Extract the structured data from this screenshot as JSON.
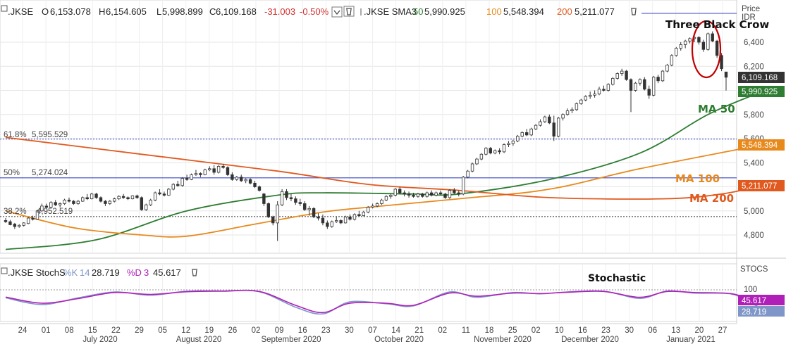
{
  "header": {
    "symbol": ".JKSE",
    "open_label": "O",
    "open": "6,153.078",
    "high_label": "H",
    "high": "6,154.605",
    "low_label": "L",
    "low": "5,998.899",
    "close_label": "C",
    "close": "6,109.168",
    "change": "-31.003",
    "change_pct": "-0.50%",
    "sma_label": ".JKSE SMA3",
    "sma50_period": "50",
    "sma50_value": "5,990.925",
    "sma100_period": "100",
    "sma100_value": "5,548.394",
    "sma200_period": "200",
    "sma200_value": "5,211.077"
  },
  "stoch_header": {
    "label": ".JKSE StochS",
    "k_label": "%K",
    "k_period": "14",
    "k_value": "28.719",
    "d_label": "%D",
    "d_period": "3",
    "d_value": "45.617"
  },
  "price_axis": {
    "label1": "Price",
    "label2": "IDR",
    "ticks": [
      "6,400",
      "6,200",
      "6,000",
      "5,800",
      "5,600",
      "5,400",
      "5,200",
      "5,000",
      "4,800"
    ],
    "tags": {
      "close": "6,109.168",
      "ma50": "5,990.925",
      "ma100": "5,548.394",
      "ma200": "5,211.077"
    }
  },
  "stoch_axis": {
    "label": "STOCS",
    "tick": "100",
    "tags": {
      "d": "45.617",
      "k": "28.719"
    }
  },
  "fib": {
    "f618_pct": "61.8%",
    "f618_value": "5,595.529",
    "f50_pct": "50%",
    "f50_value": "5,274.024",
    "f382_pct": "38.2%",
    "f382_value": "4,952.519"
  },
  "annotations": {
    "pattern": "Three Black Crow",
    "ma50": "MA 50",
    "ma100": "MA 100",
    "ma200": "MA 200",
    "stochastic": "Stochastic"
  },
  "x_axis": {
    "days": [
      "24",
      "01",
      "08",
      "15",
      "22",
      "29",
      "05",
      "12",
      "19",
      "26",
      "02",
      "09",
      "16",
      "23",
      "30",
      "07",
      "14",
      "21",
      "02",
      "11",
      "18",
      "25",
      "02",
      "10",
      "16",
      "23",
      "30",
      "06",
      "13",
      "20",
      "27"
    ],
    "months": [
      "July 2020",
      "August 2020",
      "September 2020",
      "October 2020",
      "November 2020",
      "December 2020",
      "January 2021"
    ]
  },
  "colors": {
    "ma50": "#2e7d32",
    "ma100": "#e8891c",
    "ma200": "#e05a1f",
    "k_line": "#7f96c8",
    "d_line": "#b020b8",
    "fib_line": "#3a46c8",
    "circle": "#c00000",
    "negative": "#d32f2f",
    "close_tag": "#333333"
  },
  "chart_data": {
    "type": "candlestick",
    "title": "",
    "y_unit": "IDR",
    "ylim": [
      4650,
      6600
    ],
    "x_range": [
      "2020-06-24",
      "2021-01-27"
    ],
    "candles_daily": [
      [
        4920,
        4940,
        4900,
        4910
      ],
      [
        4910,
        4925,
        4880,
        4885
      ],
      [
        4890,
        4900,
        4850,
        4870
      ],
      [
        4870,
        4890,
        4860,
        4880
      ],
      [
        4880,
        4905,
        4870,
        4900
      ],
      [
        4895,
        4950,
        4890,
        4940
      ],
      [
        4940,
        4960,
        4920,
        4930
      ],
      [
        4930,
        5010,
        4925,
        5000
      ],
      [
        5000,
        5060,
        4990,
        5040
      ],
      [
        5040,
        5060,
        5020,
        5030
      ],
      [
        5030,
        5080,
        5020,
        5070
      ],
      [
        5070,
        5090,
        5040,
        5050
      ],
      [
        5050,
        5070,
        5030,
        5060
      ],
      [
        5060,
        5100,
        5050,
        5090
      ],
      [
        5090,
        5110,
        5070,
        5080
      ],
      [
        5080,
        5090,
        5050,
        5060
      ],
      [
        5060,
        5090,
        5050,
        5080
      ],
      [
        5080,
        5120,
        5075,
        5110
      ],
      [
        5110,
        5140,
        5090,
        5100
      ],
      [
        5100,
        5150,
        5095,
        5140
      ],
      [
        5140,
        5150,
        5100,
        5110
      ],
      [
        5110,
        5120,
        5070,
        5080
      ],
      [
        5080,
        5090,
        5040,
        5060
      ],
      [
        5060,
        5090,
        5050,
        5080
      ],
      [
        5080,
        5110,
        5070,
        5100
      ],
      [
        5100,
        5130,
        5090,
        5120
      ],
      [
        5120,
        5140,
        5100,
        5110
      ],
      [
        5110,
        5120,
        5090,
        5100
      ],
      [
        5100,
        5130,
        5095,
        5125
      ],
      [
        5125,
        5135,
        5100,
        5110
      ],
      [
        5110,
        5120,
        5000,
        5010
      ],
      [
        5010,
        5060,
        5000,
        5050
      ],
      [
        5050,
        5100,
        5040,
        5090
      ],
      [
        5090,
        5160,
        5080,
        5150
      ],
      [
        5150,
        5180,
        5130,
        5140
      ],
      [
        5140,
        5160,
        5120,
        5130
      ],
      [
        5130,
        5190,
        5125,
        5180
      ],
      [
        5180,
        5230,
        5170,
        5220
      ],
      [
        5220,
        5250,
        5200,
        5210
      ],
      [
        5210,
        5280,
        5200,
        5270
      ],
      [
        5270,
        5300,
        5250,
        5260
      ],
      [
        5260,
        5310,
        5255,
        5300
      ],
      [
        5300,
        5340,
        5290,
        5310
      ],
      [
        5310,
        5320,
        5280,
        5300
      ],
      [
        5300,
        5350,
        5295,
        5340
      ],
      [
        5340,
        5370,
        5330,
        5350
      ],
      [
        5350,
        5380,
        5300,
        5320
      ],
      [
        5320,
        5380,
        5310,
        5370
      ],
      [
        5370,
        5390,
        5350,
        5360
      ],
      [
        5360,
        5370,
        5290,
        5300
      ],
      [
        5300,
        5320,
        5250,
        5260
      ],
      [
        5260,
        5290,
        5250,
        5280
      ],
      [
        5280,
        5300,
        5240,
        5250
      ],
      [
        5250,
        5270,
        5230,
        5260
      ],
      [
        5260,
        5270,
        5220,
        5230
      ],
      [
        5230,
        5250,
        5190,
        5200
      ],
      [
        5200,
        5210,
        5160,
        5170
      ],
      [
        5140,
        5150,
        5040,
        5060
      ],
      [
        5060,
        5070,
        4940,
        4950
      ],
      [
        4950,
        4960,
        4880,
        4900
      ],
      [
        4900,
        5080,
        4750,
        5050
      ],
      [
        5050,
        5180,
        5040,
        5160
      ],
      [
        5160,
        5180,
        5090,
        5110
      ],
      [
        5110,
        5140,
        5080,
        5100
      ],
      [
        5100,
        5120,
        5050,
        5070
      ],
      [
        5070,
        5100,
        5040,
        5060
      ],
      [
        5060,
        5080,
        5000,
        5010
      ],
      [
        5010,
        5040,
        4960,
        5020
      ],
      [
        5020,
        5030,
        4940,
        4950
      ],
      [
        4950,
        4980,
        4920,
        4940
      ],
      [
        4940,
        4970,
        4880,
        4900
      ],
      [
        4900,
        4920,
        4850,
        4870
      ],
      [
        4870,
        4920,
        4860,
        4910
      ],
      [
        4910,
        4950,
        4900,
        4920
      ],
      [
        4920,
        4930,
        4890,
        4900
      ],
      [
        4900,
        4960,
        4895,
        4950
      ],
      [
        4950,
        4970,
        4920,
        4930
      ],
      [
        4930,
        4980,
        4920,
        4970
      ],
      [
        4970,
        5000,
        4950,
        4960
      ],
      [
        4960,
        5000,
        4955,
        4990
      ],
      [
        4990,
        5040,
        4980,
        5030
      ],
      [
        5030,
        5060,
        5020,
        5040
      ],
      [
        5040,
        5070,
        5030,
        5060
      ],
      [
        5060,
        5100,
        5050,
        5090
      ],
      [
        5090,
        5130,
        5080,
        5120
      ],
      [
        5120,
        5140,
        5100,
        5130
      ],
      [
        5130,
        5190,
        5120,
        5180
      ],
      [
        5180,
        5200,
        5140,
        5150
      ],
      [
        5150,
        5170,
        5120,
        5140
      ],
      [
        5140,
        5160,
        5110,
        5130
      ],
      [
        5130,
        5150,
        5110,
        5120
      ],
      [
        5120,
        5150,
        5110,
        5140
      ],
      [
        5140,
        5150,
        5110,
        5120
      ],
      [
        5120,
        5160,
        5110,
        5150
      ],
      [
        5150,
        5170,
        5120,
        5130
      ],
      [
        5130,
        5160,
        5120,
        5150
      ],
      [
        5150,
        5170,
        5130,
        5140
      ],
      [
        5140,
        5150,
        5100,
        5110
      ],
      [
        5110,
        5180,
        5100,
        5170
      ],
      [
        5170,
        5190,
        5140,
        5150
      ],
      [
        5150,
        5170,
        5120,
        5140
      ],
      [
        5140,
        5290,
        5130,
        5280
      ],
      [
        5280,
        5340,
        5270,
        5330
      ],
      [
        5330,
        5400,
        5320,
        5390
      ],
      [
        5390,
        5440,
        5380,
        5430
      ],
      [
        5430,
        5480,
        5420,
        5470
      ],
      [
        5470,
        5530,
        5460,
        5520
      ],
      [
        5520,
        5530,
        5470,
        5480
      ],
      [
        5480,
        5510,
        5470,
        5500
      ],
      [
        5500,
        5520,
        5470,
        5490
      ],
      [
        5490,
        5560,
        5480,
        5550
      ],
      [
        5550,
        5580,
        5530,
        5560
      ],
      [
        5560,
        5590,
        5540,
        5580
      ],
      [
        5580,
        5630,
        5570,
        5620
      ],
      [
        5620,
        5660,
        5610,
        5650
      ],
      [
        5650,
        5680,
        5620,
        5630
      ],
      [
        5630,
        5690,
        5620,
        5680
      ],
      [
        5680,
        5720,
        5670,
        5710
      ],
      [
        5710,
        5760,
        5700,
        5740
      ],
      [
        5740,
        5790,
        5730,
        5780
      ],
      [
        5780,
        5800,
        5720,
        5730
      ],
      [
        5730,
        5790,
        5580,
        5620
      ],
      [
        5620,
        5780,
        5610,
        5770
      ],
      [
        5770,
        5810,
        5750,
        5800
      ],
      [
        5800,
        5850,
        5790,
        5830
      ],
      [
        5830,
        5860,
        5810,
        5840
      ],
      [
        5840,
        5900,
        5830,
        5890
      ],
      [
        5890,
        5930,
        5880,
        5920
      ],
      [
        5920,
        5960,
        5910,
        5950
      ],
      [
        5950,
        5990,
        5930,
        5960
      ],
      [
        5960,
        6000,
        5940,
        5970
      ],
      [
        5970,
        6030,
        5960,
        6010
      ],
      [
        6010,
        6040,
        5990,
        6000
      ],
      [
        6000,
        6060,
        5990,
        6050
      ],
      [
        6050,
        6110,
        6040,
        6100
      ],
      [
        6100,
        6150,
        6090,
        6140
      ],
      [
        6140,
        6180,
        6120,
        6160
      ],
      [
        6160,
        6170,
        6080,
        6090
      ],
      [
        6090,
        6100,
        5820,
        6000
      ],
      [
        6000,
        6070,
        5990,
        6060
      ],
      [
        6060,
        6100,
        6040,
        6090
      ],
      [
        6090,
        6110,
        6000,
        6010
      ],
      [
        6010,
        6040,
        5930,
        5960
      ],
      [
        5960,
        6120,
        5950,
        6110
      ],
      [
        6110,
        6130,
        6060,
        6080
      ],
      [
        6080,
        6170,
        6070,
        6160
      ],
      [
        6160,
        6220,
        6150,
        6210
      ],
      [
        6210,
        6300,
        6200,
        6290
      ],
      [
        6290,
        6360,
        6280,
        6350
      ],
      [
        6350,
        6400,
        6330,
        6380
      ],
      [
        6380,
        6420,
        6350,
        6410
      ],
      [
        6410,
        6440,
        6390,
        6430
      ],
      [
        6430,
        6460,
        6400,
        6440
      ],
      [
        6440,
        6450,
        6380,
        6400
      ],
      [
        6400,
        6420,
        6320,
        6340
      ],
      [
        6340,
        6480,
        6330,
        6470
      ],
      [
        6470,
        6490,
        6400,
        6410
      ],
      [
        6410,
        6420,
        6270,
        6290
      ],
      [
        6290,
        6310,
        6160,
        6180
      ],
      [
        6153.078,
        6154.605,
        5998.899,
        6109.168
      ]
    ],
    "series": [
      {
        "name": "MA 50",
        "points": [
          [
            0,
            4680
          ],
          [
            20,
            4760
          ],
          [
            40,
            5000
          ],
          [
            60,
            5130
          ],
          [
            70,
            5150
          ],
          [
            90,
            5140
          ],
          [
            100,
            5140
          ],
          [
            120,
            5260
          ],
          [
            140,
            5480
          ],
          [
            155,
            5800
          ],
          [
            167,
            5990.925
          ]
        ]
      },
      {
        "name": "MA 100",
        "points": [
          [
            0,
            5000
          ],
          [
            15,
            4860
          ],
          [
            30,
            4800
          ],
          [
            40,
            4790
          ],
          [
            55,
            4890
          ],
          [
            70,
            4990
          ],
          [
            80,
            5030
          ],
          [
            100,
            5100
          ],
          [
            120,
            5180
          ],
          [
            140,
            5350
          ],
          [
            167,
            5548.394
          ]
        ]
      },
      {
        "name": "MA 200",
        "points": [
          [
            0,
            5610
          ],
          [
            30,
            5470
          ],
          [
            60,
            5330
          ],
          [
            80,
            5220
          ],
          [
            100,
            5170
          ],
          [
            120,
            5110
          ],
          [
            145,
            5100
          ],
          [
            158,
            5140
          ],
          [
            167,
            5211.077
          ]
        ]
      }
    ],
    "fibonacci": [
      {
        "label": "61.8%",
        "value": 5595.529
      },
      {
        "label": "50%",
        "value": 5274.024
      },
      {
        "label": "38.2%",
        "value": 4952.519
      }
    ],
    "stochastic": {
      "ylim": [
        0,
        110
      ],
      "k_points": [
        [
          0,
          70
        ],
        [
          8,
          45
        ],
        [
          16,
          70
        ],
        [
          24,
          92
        ],
        [
          32,
          80
        ],
        [
          40,
          95
        ],
        [
          48,
          96
        ],
        [
          56,
          93
        ],
        [
          64,
          35
        ],
        [
          70,
          10
        ],
        [
          76,
          55
        ],
        [
          84,
          48
        ],
        [
          90,
          40
        ],
        [
          98,
          92
        ],
        [
          104,
          72
        ],
        [
          112,
          90
        ],
        [
          118,
          85
        ],
        [
          124,
          92
        ],
        [
          132,
          95
        ],
        [
          140,
          68
        ],
        [
          146,
          96
        ],
        [
          152,
          88
        ],
        [
          160,
          85
        ],
        [
          164,
          55
        ],
        [
          167,
          28.719
        ]
      ],
      "d_points": [
        [
          0,
          73
        ],
        [
          8,
          50
        ],
        [
          16,
          67
        ],
        [
          24,
          90
        ],
        [
          32,
          83
        ],
        [
          40,
          93
        ],
        [
          48,
          95
        ],
        [
          56,
          94
        ],
        [
          64,
          42
        ],
        [
          70,
          15
        ],
        [
          76,
          50
        ],
        [
          84,
          50
        ],
        [
          90,
          42
        ],
        [
          98,
          88
        ],
        [
          104,
          76
        ],
        [
          112,
          88
        ],
        [
          118,
          86
        ],
        [
          124,
          91
        ],
        [
          132,
          94
        ],
        [
          140,
          72
        ],
        [
          146,
          94
        ],
        [
          152,
          90
        ],
        [
          160,
          86
        ],
        [
          164,
          65
        ],
        [
          167,
          45.617
        ]
      ]
    }
  }
}
